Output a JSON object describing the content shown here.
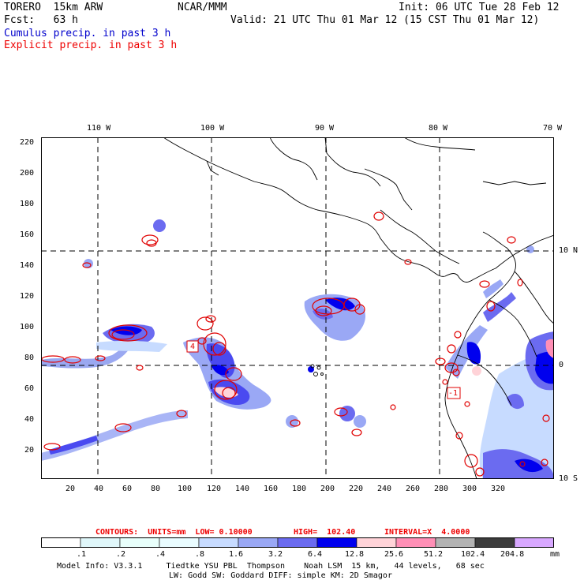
{
  "header": {
    "model": "TORERO  15km ARW",
    "org": "NCAR/MMM",
    "init": "Init: 06 UTC Tue 28 Feb 12",
    "fcst": "Fcst:   63 h",
    "valid": "Valid: 21 UTC Thu 01 Mar 12 (15 CST Thu 01 Mar 12)",
    "cumulus": "Cumulus precip. in past 3 h",
    "explicit": "Explicit precip. in past 3 h"
  },
  "map": {
    "lon_labels": [
      "110 W",
      "100 W",
      "90 W",
      "80 W",
      "70 W"
    ],
    "lat_labels": [
      "10 N",
      "0",
      "10 S"
    ],
    "grid_x_labels": [
      "20",
      "40",
      "60",
      "80",
      "100",
      "120",
      "140",
      "160",
      "180",
      "200",
      "220",
      "240",
      "260",
      "280",
      "300",
      "320"
    ],
    "grid_y_labels": [
      "220",
      "200",
      "180",
      "160",
      "140",
      "120",
      "100",
      "80",
      "60",
      "40",
      "20"
    ],
    "box_labels": [
      "4",
      "-1"
    ]
  },
  "contour_info": {
    "contours": "CONTOURS:  UNITS=mm  LOW= 0.10000",
    "high": "HIGH=  102.40",
    "interval": "INTERVAL=X  4.0000"
  },
  "colorbar": {
    "labels": [
      ".1",
      ".2",
      ".4",
      ".8",
      "1.6",
      "3.2",
      "6.4",
      "12.8",
      "25.6",
      "51.2",
      "102.4",
      "204.8"
    ],
    "unit": "mm",
    "colors": [
      "#ffffff",
      "#e0f7fa",
      "#e8fffb",
      "#e9fcff",
      "#c7dbff",
      "#9aa8f5",
      "#6b6bf0",
      "#0000ee",
      "#ffd3d8",
      "#ff8fb6",
      "#b3b3b3",
      "#3c3c3c",
      "#d8a8ff"
    ]
  },
  "footer": {
    "line1": "Model Info: V3.3.1     Tiedtke YSU PBL  Thompson    Noah LSM  15 km,   44 levels,   68 sec",
    "line2": "LW: Godd SW: Goddard DIFF: simple KM: 2D Smagor"
  }
}
